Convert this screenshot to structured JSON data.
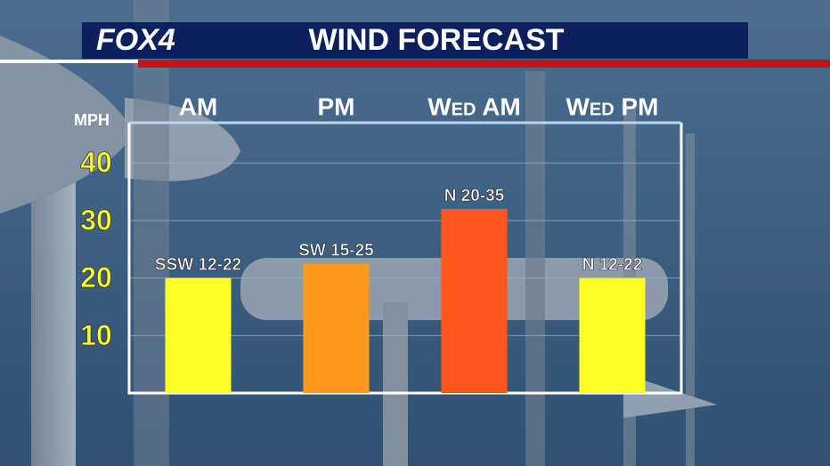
{
  "brand": "FOX4",
  "chart_data": {
    "type": "bar",
    "title": "WIND FORECAST",
    "y_label": "MPH",
    "categories": [
      "AM",
      "PM",
      "Wed AM",
      "Wed PM"
    ],
    "values": [
      20,
      22.5,
      32,
      20
    ],
    "bar_labels": [
      "SSW 12-22",
      "SW 15-25",
      "N 20-35",
      "N 12-22"
    ],
    "colors": [
      "#ffff26",
      "#ff9a1e",
      "#ff561c",
      "#ffff26"
    ],
    "ylim": [
      0,
      47
    ],
    "yticks": [
      10,
      20,
      30,
      40
    ],
    "grid": true
  }
}
